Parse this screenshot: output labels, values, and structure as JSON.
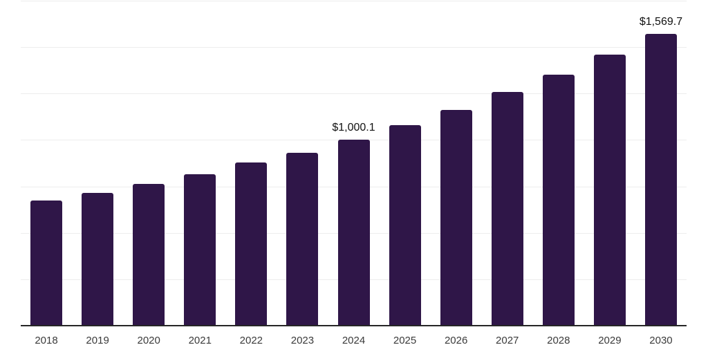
{
  "chart": {
    "background_color": "#ffffff",
    "bar_color": "#2f1648",
    "axis_line_color": "#262626",
    "gridline_color": "#ededed",
    "x_label_color": "#3a3a3a",
    "data_label_color": "#111111"
  },
  "chart_data": {
    "type": "bar",
    "title": "",
    "xlabel": "",
    "ylabel": "",
    "categories": [
      "2018",
      "2019",
      "2020",
      "2021",
      "2022",
      "2023",
      "2024",
      "2025",
      "2026",
      "2027",
      "2028",
      "2029",
      "2030"
    ],
    "values": [
      674.0,
      716.1,
      763.3,
      815.5,
      878.8,
      932.0,
      1000.1,
      1079.8,
      1162.9,
      1257.5,
      1352.8,
      1458.5,
      1569.7
    ],
    "data_labels": [
      "",
      "",
      "",
      "",
      "",
      "",
      "$1,000.1",
      "",
      "",
      "",
      "",
      "",
      "$1,569.7"
    ],
    "ylim": [
      0,
      1750
    ],
    "gridline_interval": 250,
    "grid": "on",
    "y_tick_labels_visible": false,
    "legend_position": "none"
  }
}
